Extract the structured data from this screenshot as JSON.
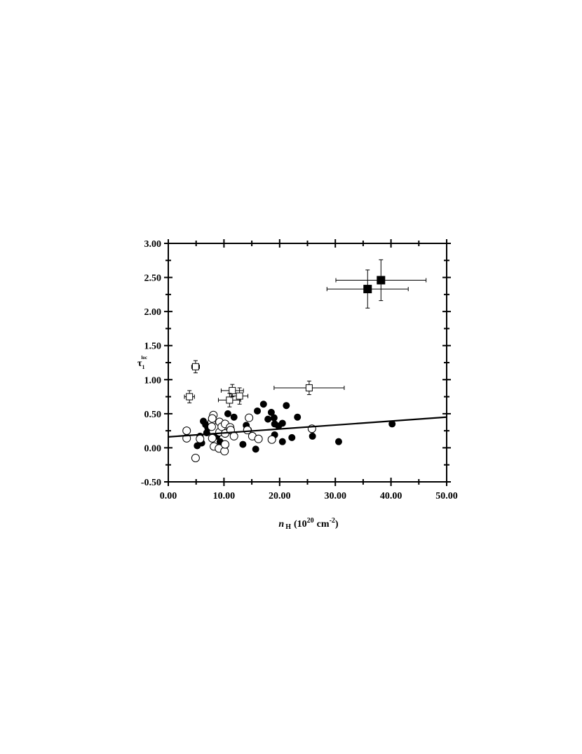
{
  "chart_data": {
    "type": "scatter",
    "x_label_parts": [
      "n",
      "H",
      "(10",
      "20",
      "cm",
      "-2",
      ")"
    ],
    "y_label_parts": [
      "τ",
      "1",
      "loc"
    ],
    "xlim": [
      0,
      50
    ],
    "ylim": [
      -0.5,
      3
    ],
    "xticks": [
      {
        "value": 0,
        "label": "0.00"
      },
      {
        "value": 10,
        "label": "10.00"
      },
      {
        "value": 20,
        "label": "20.00"
      },
      {
        "value": 30,
        "label": "30.00"
      },
      {
        "value": 40,
        "label": "40.00"
      },
      {
        "value": 50,
        "label": "50.00"
      }
    ],
    "yticks": [
      {
        "value": -0.5,
        "label": "-0.50"
      },
      {
        "value": 0,
        "label": "0.00"
      },
      {
        "value": 0.5,
        "label": "0.50"
      },
      {
        "value": 1,
        "label": "1.00"
      },
      {
        "value": 1.5,
        "label": "1.50"
      },
      {
        "value": 2,
        "label": "2.00"
      },
      {
        "value": 2.5,
        "label": "2.50"
      },
      {
        "value": 3,
        "label": "3.00"
      }
    ],
    "series": [
      {
        "marker": "circle",
        "filled": true,
        "color": "#000000",
        "x": [
          6.3,
          6.7,
          7.1,
          5.2,
          6.0,
          6.9,
          8.7,
          9.3,
          10.7,
          11.8,
          13.4,
          14.0,
          14.4,
          15.7,
          16.0,
          17.1,
          17.9,
          18.5,
          19.0,
          19.1,
          19.1,
          19.8,
          20.5,
          20.5,
          21.2,
          22.2,
          23.2,
          25.9,
          30.6,
          40.2,
          10.3,
          5.7
        ],
        "values": [
          0.39,
          0.34,
          0.29,
          0.03,
          0.07,
          0.22,
          0.17,
          0.09,
          0.5,
          0.45,
          0.05,
          0.33,
          0.26,
          -0.02,
          0.54,
          0.64,
          0.42,
          0.52,
          0.44,
          0.35,
          0.19,
          0.32,
          0.36,
          0.09,
          0.62,
          0.15,
          0.45,
          0.17,
          0.09,
          0.35,
          0.04,
          0.17
        ]
      },
      {
        "marker": "circle",
        "filled": false,
        "color": "#000000",
        "x": [
          3.3,
          3.3,
          4.9,
          5.7,
          7.8,
          7.8,
          8.1,
          7.9,
          8.2,
          9.2,
          9.2,
          9.1,
          9.6,
          10.2,
          10.1,
          10.2,
          11.1,
          11.2,
          11.8,
          14.5,
          14.2,
          15.1,
          16.2,
          18.6,
          25.8,
          7.9,
          10.2
        ],
        "values": [
          0.25,
          0.14,
          -0.15,
          0.13,
          0.38,
          0.31,
          0.48,
          0.14,
          0.02,
          0.38,
          0.23,
          -0.01,
          0.31,
          0.35,
          -0.05,
          0.21,
          0.3,
          0.26,
          0.17,
          0.44,
          0.26,
          0.17,
          0.13,
          0.12,
          0.28,
          0.43,
          0.05
        ]
      },
      {
        "marker": "square",
        "filled": false,
        "color": "#000000",
        "x": [
          4.9,
          3.8,
          11.5,
          11.0,
          12.8,
          25.3
        ],
        "values": [
          1.19,
          0.75,
          0.84,
          0.7,
          0.76,
          0.88
        ],
        "xerr": [
          0.7,
          0.9,
          2.0,
          2.0,
          1.5,
          6.3
        ],
        "yerr": [
          0.09,
          0.09,
          0.09,
          0.1,
          0.12,
          0.1
        ]
      },
      {
        "marker": "square",
        "filled": true,
        "color": "#000000",
        "x": [
          38.2,
          35.8
        ],
        "values": [
          2.46,
          2.33
        ],
        "xerr": [
          8.1,
          7.3
        ],
        "yerr": [
          0.3,
          0.28
        ]
      },
      {
        "marker": "line",
        "color": "#000000",
        "x": [
          0,
          50
        ],
        "values": [
          0.16,
          0.45
        ]
      }
    ]
  }
}
